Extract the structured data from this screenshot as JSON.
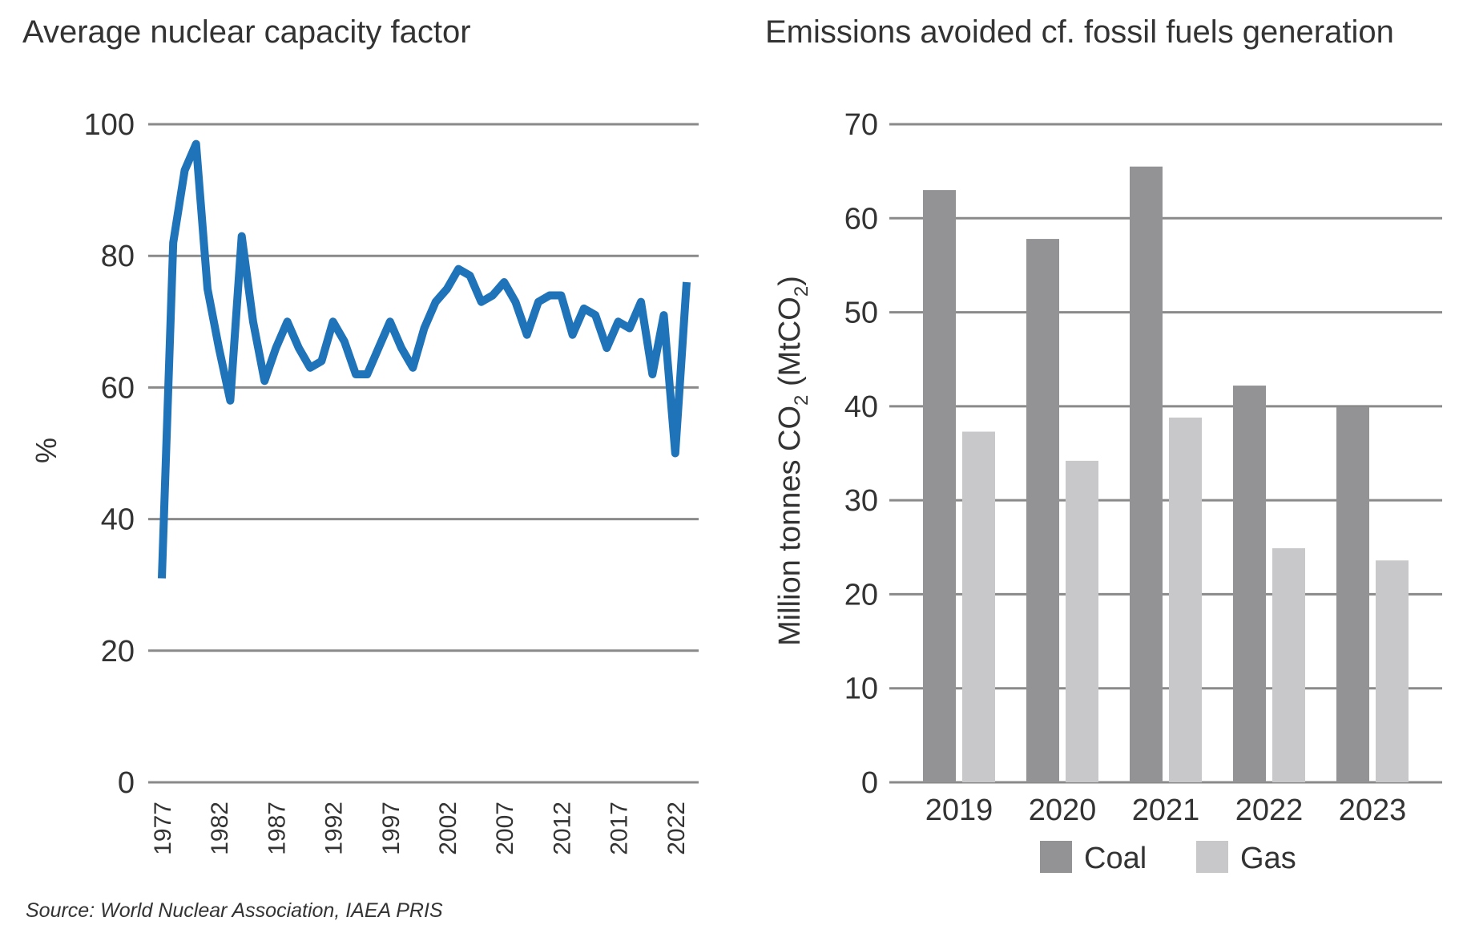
{
  "source_text": "Source: World Nuclear Association, IAEA PRIS",
  "colors": {
    "line": "#1f73b8",
    "coal": "#939396",
    "gas": "#c8c8ca",
    "grid": "#8a8a8a"
  },
  "chart_data": [
    {
      "type": "line",
      "title": "Average nuclear capacity factor",
      "xlabel": "",
      "ylabel": "%",
      "ylim": [
        0,
        100
      ],
      "yticks": [
        0,
        20,
        40,
        60,
        80,
        100
      ],
      "xticks": [
        1977,
        1982,
        1987,
        1992,
        1997,
        2002,
        2007,
        2012,
        2017,
        2022
      ],
      "grid": true,
      "x": [
        1977,
        1978,
        1979,
        1980,
        1981,
        1982,
        1983,
        1984,
        1985,
        1986,
        1987,
        1988,
        1989,
        1990,
        1991,
        1992,
        1993,
        1994,
        1995,
        1996,
        1997,
        1998,
        1999,
        2000,
        2001,
        2002,
        2003,
        2004,
        2005,
        2006,
        2007,
        2008,
        2009,
        2010,
        2011,
        2012,
        2013,
        2014,
        2015,
        2016,
        2017,
        2018,
        2019,
        2020,
        2021,
        2022,
        2023
      ],
      "series": [
        {
          "values": [
            31,
            82,
            93,
            97,
            75,
            66,
            58,
            83,
            70,
            61,
            66,
            70,
            66,
            63,
            64,
            70,
            67,
            62,
            62,
            66,
            70,
            66,
            63,
            69,
            73,
            75,
            78,
            77,
            73,
            74,
            76,
            73,
            68,
            73,
            74,
            74,
            68,
            72,
            71,
            66,
            70,
            69,
            73,
            62,
            71,
            50,
            76
          ]
        }
      ]
    },
    {
      "type": "bar",
      "title": "Emissions avoided cf. fossil fuels generation",
      "xlabel": "",
      "ylabel": "Million tonnes CO2 (MtCO2)",
      "ylabel_parts": {
        "a": "Million tonnes CO",
        "sub1": "2",
        "b": " (MtCO",
        "sub2": "2",
        "c": ")"
      },
      "ylim": [
        0,
        70
      ],
      "yticks": [
        0,
        10,
        20,
        30,
        40,
        50,
        60,
        70
      ],
      "grid": true,
      "legend": "bottom",
      "categories": [
        "2019",
        "2020",
        "2021",
        "2022",
        "2023"
      ],
      "series": [
        {
          "name": "Coal",
          "values": [
            63,
            57.8,
            65.5,
            42.2,
            39.9
          ]
        },
        {
          "name": "Gas",
          "values": [
            37.3,
            34.2,
            38.8,
            24.9,
            23.6
          ]
        }
      ]
    }
  ]
}
